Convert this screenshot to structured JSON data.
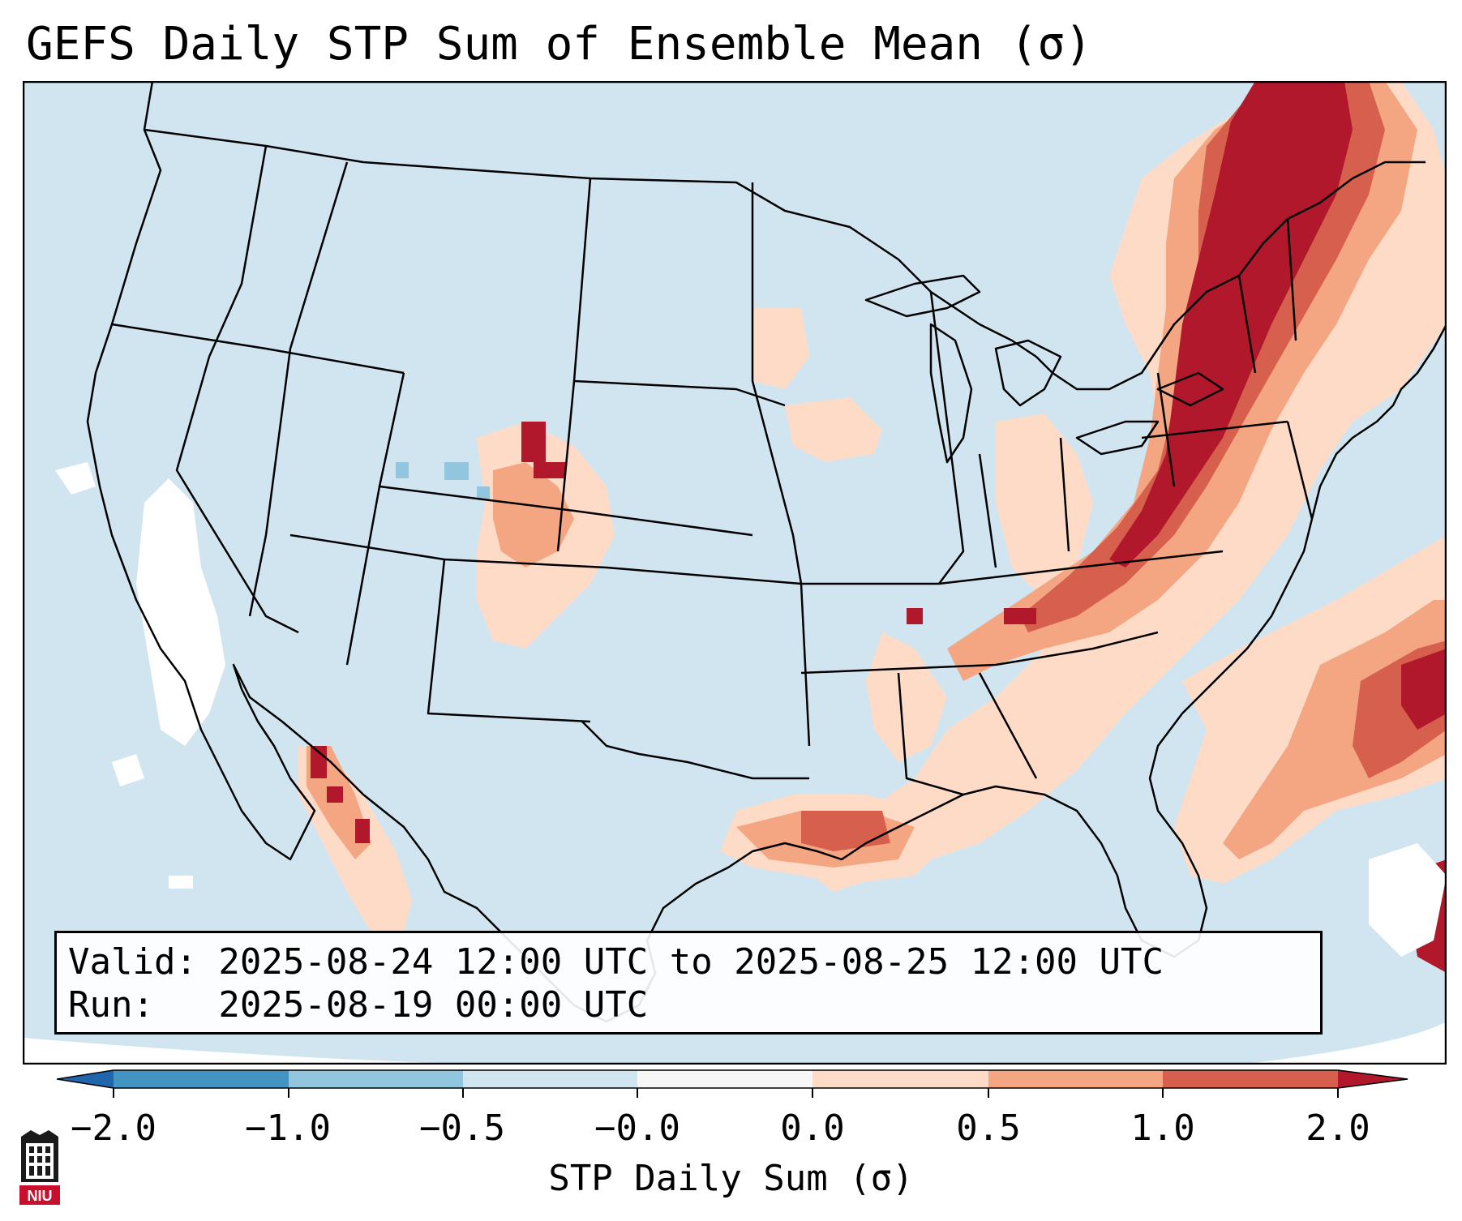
{
  "title": "GEFS Daily STP Sum of Ensemble Mean (σ)",
  "info": {
    "valid_line": "Valid: 2025-08-24 12:00 UTC to 2025-08-25 12:00 UTC",
    "run_line": "Run:   2025-08-19 00:00 UTC"
  },
  "colorbar": {
    "label": "STP Daily Sum (σ)",
    "ticks": [
      "−2.0",
      "−1.0",
      "−0.5",
      "−0.0",
      "0.0",
      "0.5",
      "1.0",
      "2.0"
    ],
    "colors": {
      "under": "#2166ac",
      "b_neg2_neg1": "#4393c3",
      "b_neg1_neg05": "#92c5de",
      "b_neg05_0": "#d1e5f0",
      "b_0_0": "#f7f7f7",
      "b_0_05": "#fddbc7",
      "b_05_1": "#f4a582",
      "b_1_2": "#d6604d",
      "over": "#b2182b"
    }
  },
  "logo": {
    "text": "NIU"
  },
  "map": {
    "background": "#d1e5f0",
    "outside": "#ffffff"
  }
}
